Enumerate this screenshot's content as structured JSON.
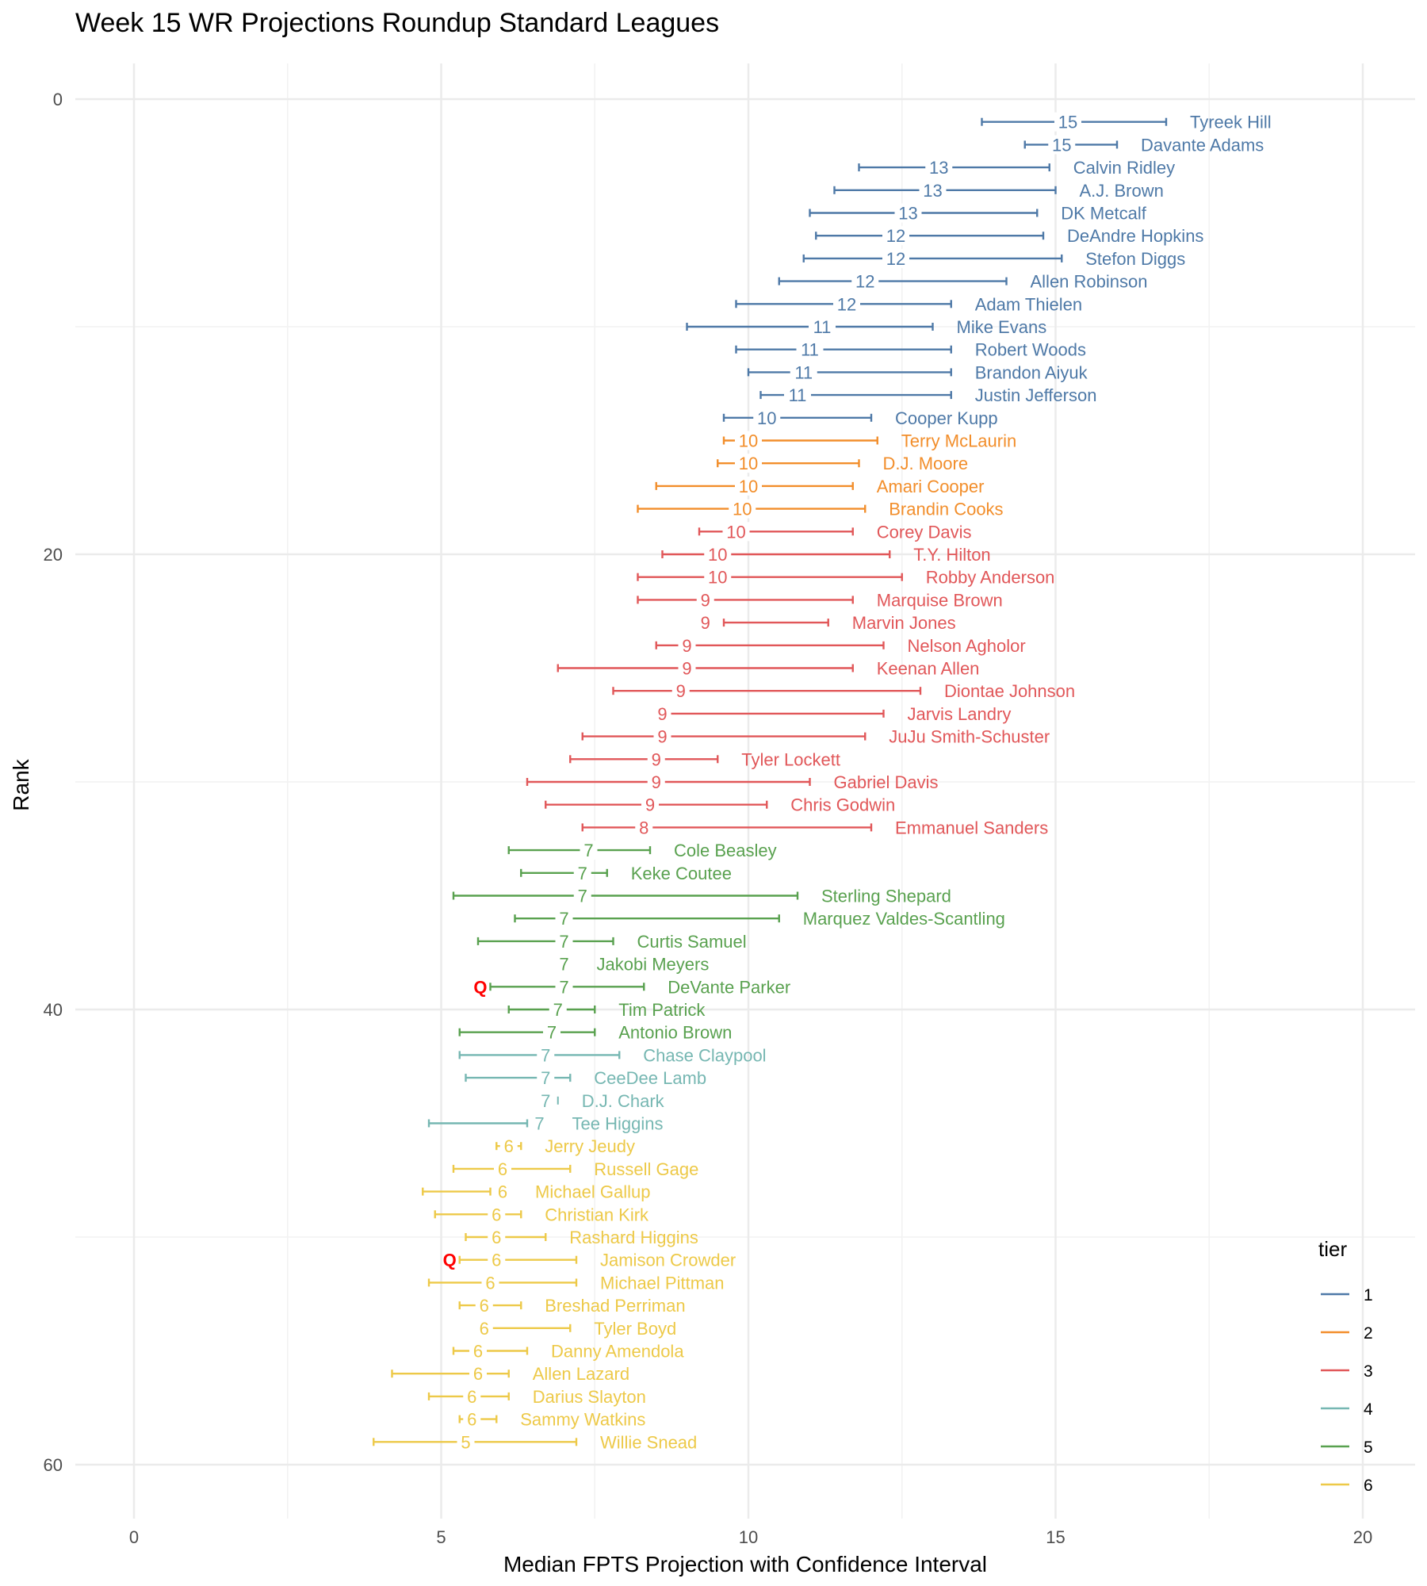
{
  "chart_data": {
    "type": "errorbar",
    "title": "Week 15 WR Projections Roundup Standard Leagues",
    "xlabel": "Median FPTS Projection with Confidence Interval",
    "ylabel": "Rank",
    "xlim": [
      -0.4,
      20.4
    ],
    "ylim": [
      -1,
      62
    ],
    "x_ticks": [
      0,
      5,
      10,
      15,
      20
    ],
    "y_ticks": [
      0,
      20,
      40,
      60
    ],
    "y_reversed": true,
    "grid": true,
    "legend": {
      "title": "tier",
      "placement": "right"
    },
    "tiers": [
      {
        "tier": "1",
        "color": "#4e79a7"
      },
      {
        "tier": "2",
        "color": "#f28e2b"
      },
      {
        "tier": "3",
        "color": "#e15759"
      },
      {
        "tier": "4",
        "color": "#76b7b2"
      },
      {
        "tier": "5",
        "color": "#59a14f"
      },
      {
        "tier": "6",
        "color": "#edc948"
      }
    ],
    "players": [
      {
        "rank": 1,
        "name": "Tyreek Hill",
        "tier": "1",
        "median": 15.2,
        "label": "15",
        "lo": 13.8,
        "hi": 16.8,
        "q": ""
      },
      {
        "rank": 2,
        "name": "Davante Adams",
        "tier": "1",
        "median": 15.1,
        "label": "15",
        "lo": 14.5,
        "hi": 16.0,
        "q": ""
      },
      {
        "rank": 3,
        "name": "Calvin Ridley",
        "tier": "1",
        "median": 13.1,
        "label": "13",
        "lo": 11.8,
        "hi": 14.9,
        "q": ""
      },
      {
        "rank": 4,
        "name": "A.J. Brown",
        "tier": "1",
        "median": 13.0,
        "label": "13",
        "lo": 11.4,
        "hi": 15.0,
        "q": ""
      },
      {
        "rank": 5,
        "name": "DK Metcalf",
        "tier": "1",
        "median": 12.6,
        "label": "13",
        "lo": 11.0,
        "hi": 14.7,
        "q": ""
      },
      {
        "rank": 6,
        "name": "DeAndre Hopkins",
        "tier": "1",
        "median": 12.4,
        "label": "12",
        "lo": 11.1,
        "hi": 14.8,
        "q": ""
      },
      {
        "rank": 7,
        "name": "Stefon Diggs",
        "tier": "1",
        "median": 12.4,
        "label": "12",
        "lo": 10.9,
        "hi": 15.1,
        "q": ""
      },
      {
        "rank": 8,
        "name": "Allen Robinson",
        "tier": "1",
        "median": 11.9,
        "label": "12",
        "lo": 10.5,
        "hi": 14.2,
        "q": ""
      },
      {
        "rank": 9,
        "name": "Adam Thielen",
        "tier": "1",
        "median": 11.6,
        "label": "12",
        "lo": 9.8,
        "hi": 13.3,
        "q": ""
      },
      {
        "rank": 10,
        "name": "Mike Evans",
        "tier": "1",
        "median": 11.2,
        "label": "11",
        "lo": 9.0,
        "hi": 13.0,
        "q": ""
      },
      {
        "rank": 11,
        "name": "Robert Woods",
        "tier": "1",
        "median": 11.0,
        "label": "11",
        "lo": 9.8,
        "hi": 13.3,
        "q": ""
      },
      {
        "rank": 12,
        "name": "Brandon Aiyuk",
        "tier": "1",
        "median": 10.9,
        "label": "11",
        "lo": 10.0,
        "hi": 13.3,
        "q": ""
      },
      {
        "rank": 13,
        "name": "Justin Jefferson",
        "tier": "1",
        "median": 10.8,
        "label": "11",
        "lo": 10.2,
        "hi": 13.3,
        "q": ""
      },
      {
        "rank": 14,
        "name": "Cooper Kupp",
        "tier": "1",
        "median": 10.3,
        "label": "10",
        "lo": 9.6,
        "hi": 12.0,
        "q": ""
      },
      {
        "rank": 15,
        "name": "Terry McLaurin",
        "tier": "2",
        "median": 10.0,
        "label": "10",
        "lo": 9.6,
        "hi": 12.1,
        "q": ""
      },
      {
        "rank": 16,
        "name": "D.J. Moore",
        "tier": "2",
        "median": 10.0,
        "label": "10",
        "lo": 9.5,
        "hi": 11.8,
        "q": ""
      },
      {
        "rank": 17,
        "name": "Amari Cooper",
        "tier": "2",
        "median": 10.0,
        "label": "10",
        "lo": 8.5,
        "hi": 11.7,
        "q": ""
      },
      {
        "rank": 18,
        "name": "Brandin Cooks",
        "tier": "2",
        "median": 9.9,
        "label": "10",
        "lo": 8.2,
        "hi": 11.9,
        "q": ""
      },
      {
        "rank": 19,
        "name": "Corey Davis",
        "tier": "3",
        "median": 9.8,
        "label": "10",
        "lo": 9.2,
        "hi": 11.7,
        "q": ""
      },
      {
        "rank": 20,
        "name": "T.Y. Hilton",
        "tier": "3",
        "median": 9.5,
        "label": "10",
        "lo": 8.6,
        "hi": 12.3,
        "q": ""
      },
      {
        "rank": 21,
        "name": "Robby Anderson",
        "tier": "3",
        "median": 9.5,
        "label": "10",
        "lo": 8.2,
        "hi": 12.5,
        "q": ""
      },
      {
        "rank": 22,
        "name": "Marquise Brown",
        "tier": "3",
        "median": 9.3,
        "label": "9",
        "lo": 8.2,
        "hi": 11.7,
        "q": ""
      },
      {
        "rank": 23,
        "name": "Marvin Jones",
        "tier": "3",
        "median": 9.3,
        "label": "9",
        "lo": 9.6,
        "hi": 11.3,
        "q": ""
      },
      {
        "rank": 24,
        "name": "Nelson Agholor",
        "tier": "3",
        "median": 9.0,
        "label": "9",
        "lo": 8.5,
        "hi": 12.2,
        "q": ""
      },
      {
        "rank": 25,
        "name": "Keenan Allen",
        "tier": "3",
        "median": 9.0,
        "label": "9",
        "lo": 6.9,
        "hi": 11.7,
        "q": ""
      },
      {
        "rank": 26,
        "name": "Diontae Johnson",
        "tier": "3",
        "median": 8.9,
        "label": "9",
        "lo": 7.8,
        "hi": 12.8,
        "q": ""
      },
      {
        "rank": 27,
        "name": "Jarvis Landry",
        "tier": "3",
        "median": 8.6,
        "label": "9",
        "lo": 8.5,
        "hi": 12.2,
        "q": ""
      },
      {
        "rank": 28,
        "name": "JuJu Smith-Schuster",
        "tier": "3",
        "median": 8.6,
        "label": "9",
        "lo": 7.3,
        "hi": 11.9,
        "q": ""
      },
      {
        "rank": 29,
        "name": "Tyler Lockett",
        "tier": "3",
        "median": 8.5,
        "label": "9",
        "lo": 7.1,
        "hi": 9.5,
        "q": ""
      },
      {
        "rank": 30,
        "name": "Gabriel Davis",
        "tier": "3",
        "median": 8.5,
        "label": "9",
        "lo": 6.4,
        "hi": 11.0,
        "q": ""
      },
      {
        "rank": 31,
        "name": "Chris Godwin",
        "tier": "3",
        "median": 8.4,
        "label": "9",
        "lo": 6.7,
        "hi": 10.3,
        "q": ""
      },
      {
        "rank": 32,
        "name": "Emmanuel Sanders",
        "tier": "3",
        "median": 8.3,
        "label": "8",
        "lo": 7.3,
        "hi": 12.0,
        "q": ""
      },
      {
        "rank": 33,
        "name": "Cole Beasley",
        "tier": "5",
        "median": 7.4,
        "label": "7",
        "lo": 6.1,
        "hi": 8.4,
        "q": ""
      },
      {
        "rank": 34,
        "name": "Keke Coutee",
        "tier": "5",
        "median": 7.3,
        "label": "7",
        "lo": 6.3,
        "hi": 7.7,
        "q": ""
      },
      {
        "rank": 35,
        "name": "Sterling Shepard",
        "tier": "5",
        "median": 7.3,
        "label": "7",
        "lo": 5.2,
        "hi": 10.8,
        "q": ""
      },
      {
        "rank": 36,
        "name": "Marquez Valdes-Scantling",
        "tier": "5",
        "median": 7.0,
        "label": "7",
        "lo": 6.2,
        "hi": 10.5,
        "q": ""
      },
      {
        "rank": 37,
        "name": "Curtis Samuel",
        "tier": "5",
        "median": 7.0,
        "label": "7",
        "lo": 5.6,
        "hi": 7.8,
        "q": ""
      },
      {
        "rank": 38,
        "name": "Jakobi Meyers",
        "tier": "5",
        "median": 7.0,
        "label": "7",
        "lo": 7.0,
        "hi": 7.0,
        "q": ""
      },
      {
        "rank": 39,
        "name": "DeVante Parker",
        "tier": "5",
        "median": 7.0,
        "label": "7",
        "lo": 5.8,
        "hi": 8.3,
        "q": "Q"
      },
      {
        "rank": 40,
        "name": "Tim Patrick",
        "tier": "5",
        "median": 6.9,
        "label": "7",
        "lo": 6.1,
        "hi": 7.5,
        "q": ""
      },
      {
        "rank": 41,
        "name": "Antonio Brown",
        "tier": "5",
        "median": 6.8,
        "label": "7",
        "lo": 5.3,
        "hi": 7.5,
        "q": ""
      },
      {
        "rank": 42,
        "name": "Chase Claypool",
        "tier": "4",
        "median": 6.7,
        "label": "7",
        "lo": 5.3,
        "hi": 7.9,
        "q": ""
      },
      {
        "rank": 43,
        "name": "CeeDee Lamb",
        "tier": "4",
        "median": 6.7,
        "label": "7",
        "lo": 5.4,
        "hi": 7.1,
        "q": ""
      },
      {
        "rank": 44,
        "name": "D.J. Chark",
        "tier": "4",
        "median": 6.7,
        "label": "7",
        "lo": 6.9,
        "hi": 6.9,
        "q": ""
      },
      {
        "rank": 45,
        "name": "Tee Higgins",
        "tier": "4",
        "median": 6.6,
        "label": "7",
        "lo": 4.8,
        "hi": 6.4,
        "q": ""
      },
      {
        "rank": 46,
        "name": "Jerry Jeudy",
        "tier": "6",
        "median": 6.1,
        "label": "6",
        "lo": 5.9,
        "hi": 6.3,
        "q": ""
      },
      {
        "rank": 47,
        "name": "Russell Gage",
        "tier": "6",
        "median": 6.0,
        "label": "6",
        "lo": 5.2,
        "hi": 7.1,
        "q": ""
      },
      {
        "rank": 48,
        "name": "Michael Gallup",
        "tier": "6",
        "median": 6.0,
        "label": "6",
        "lo": 4.7,
        "hi": 5.8,
        "q": ""
      },
      {
        "rank": 49,
        "name": "Christian Kirk",
        "tier": "6",
        "median": 5.9,
        "label": "6",
        "lo": 4.9,
        "hi": 6.3,
        "q": ""
      },
      {
        "rank": 50,
        "name": "Rashard Higgins",
        "tier": "6",
        "median": 5.9,
        "label": "6",
        "lo": 5.4,
        "hi": 6.7,
        "q": ""
      },
      {
        "rank": 51,
        "name": "Jamison Crowder",
        "tier": "6",
        "median": 5.9,
        "label": "6",
        "lo": 5.3,
        "hi": 7.2,
        "q": "Q"
      },
      {
        "rank": 52,
        "name": "Michael Pittman",
        "tier": "6",
        "median": 5.8,
        "label": "6",
        "lo": 4.8,
        "hi": 7.2,
        "q": ""
      },
      {
        "rank": 53,
        "name": "Breshad Perriman",
        "tier": "6",
        "median": 5.7,
        "label": "6",
        "lo": 5.3,
        "hi": 6.3,
        "q": ""
      },
      {
        "rank": 54,
        "name": "Tyler Boyd",
        "tier": "6",
        "median": 5.7,
        "label": "6",
        "lo": 5.6,
        "hi": 7.1,
        "q": ""
      },
      {
        "rank": 55,
        "name": "Danny Amendola",
        "tier": "6",
        "median": 5.6,
        "label": "6",
        "lo": 5.2,
        "hi": 6.4,
        "q": ""
      },
      {
        "rank": 56,
        "name": "Allen Lazard",
        "tier": "6",
        "median": 5.6,
        "label": "6",
        "lo": 4.2,
        "hi": 6.1,
        "q": ""
      },
      {
        "rank": 57,
        "name": "Darius Slayton",
        "tier": "6",
        "median": 5.5,
        "label": "6",
        "lo": 4.8,
        "hi": 6.1,
        "q": ""
      },
      {
        "rank": 58,
        "name": "Sammy Watkins",
        "tier": "6",
        "median": 5.5,
        "label": "6",
        "lo": 5.3,
        "hi": 5.9,
        "q": ""
      },
      {
        "rank": 59,
        "name": "Willie Snead",
        "tier": "6",
        "median": 5.4,
        "label": "5",
        "lo": 3.9,
        "hi": 7.2,
        "q": ""
      }
    ]
  }
}
